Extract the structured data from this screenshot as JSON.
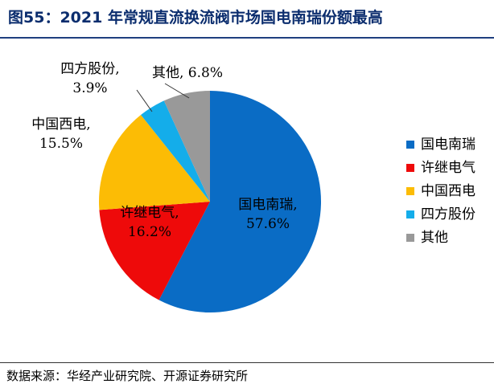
{
  "title": "图55：2021 年常规直流换流阀市场国电南瑞份额最高",
  "source": "数据来源：华经产业研究院、开源证券研究所",
  "chart_data": {
    "type": "pie",
    "title": "图55：2021 年常规直流换流阀市场国电南瑞份额最高",
    "slices": [
      {
        "name": "国电南瑞",
        "value": 57.6,
        "label": "57.6%",
        "color": "#0a6cc5"
      },
      {
        "name": "许继电气",
        "value": 16.2,
        "label": "16.2%",
        "color": "#ee0a0a"
      },
      {
        "name": "中国西电",
        "value": 15.5,
        "label": "15.5%",
        "color": "#fcbc05"
      },
      {
        "name": "四方股份",
        "value": 3.9,
        "label": "3.9%",
        "color": "#14adea"
      },
      {
        "name": "其他",
        "value": 6.8,
        "label": "6.8%",
        "color": "#999999"
      }
    ],
    "legend": "right"
  }
}
